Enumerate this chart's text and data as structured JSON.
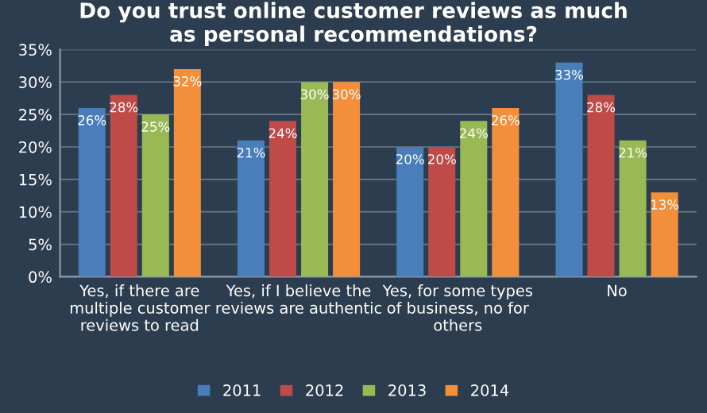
{
  "chart_data": {
    "type": "bar",
    "title": "Do you trust online customer reviews as much\nas personal recommendations?",
    "categories": [
      "Yes, if there are\nmultiple customer\nreviews to read",
      "Yes, if I believe the\nreviews are authentic",
      "Yes, for some types\nof business, no for\nothers",
      "No"
    ],
    "series": [
      {
        "name": "2011",
        "color": "#4a7ebb",
        "values": [
          26,
          21,
          20,
          33
        ],
        "value_labels": [
          "26%",
          "21%",
          "20%",
          "33%"
        ]
      },
      {
        "name": "2012",
        "color": "#be4b48",
        "values": [
          28,
          24,
          20,
          28
        ],
        "value_labels": [
          "28%",
          "24%",
          "20%",
          "28%"
        ]
      },
      {
        "name": "2013",
        "color": "#98b954",
        "values": [
          25,
          30,
          24,
          21
        ],
        "value_labels": [
          "25%",
          "30%",
          "24%",
          "21%"
        ]
      },
      {
        "name": "2014",
        "color": "#f38f3a",
        "values": [
          32,
          30,
          26,
          13
        ],
        "value_labels": [
          "32%",
          "30%",
          "26%",
          "13%"
        ]
      }
    ],
    "ylim": [
      0,
      35
    ],
    "yticks": [
      {
        "value": 0,
        "label": "0%"
      },
      {
        "value": 5,
        "label": "5%"
      },
      {
        "value": 10,
        "label": "10%"
      },
      {
        "value": 15,
        "label": "15%"
      },
      {
        "value": 20,
        "label": "20%"
      },
      {
        "value": 25,
        "label": "25%"
      },
      {
        "value": 30,
        "label": "30%"
      },
      {
        "value": 35,
        "label": "35%"
      }
    ],
    "grid": "y",
    "legend": "bottom"
  }
}
